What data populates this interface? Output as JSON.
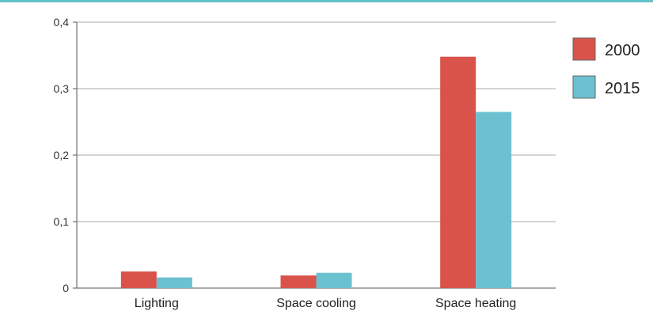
{
  "chart_data": {
    "type": "bar",
    "categories": [
      "Lighting",
      "Space cooling",
      "Space heating"
    ],
    "series": [
      {
        "name": "2000",
        "values": [
          0.025,
          0.019,
          0.348
        ],
        "color": "#d9534a"
      },
      {
        "name": "2015",
        "values": [
          0.016,
          0.023,
          0.265
        ],
        "color": "#6cc1d1"
      }
    ],
    "ylim": [
      0,
      0.4
    ],
    "yticks": [
      {
        "value": 0,
        "label": "0"
      },
      {
        "value": 0.1,
        "label": "0,1"
      },
      {
        "value": 0.2,
        "label": "0,2"
      },
      {
        "value": 0.3,
        "label": "0,3"
      },
      {
        "value": 0.4,
        "label": "0,4"
      }
    ],
    "grid": true,
    "legend_position": "right",
    "gridline_color": "#aaaaaa",
    "axis_color": "#555555"
  }
}
